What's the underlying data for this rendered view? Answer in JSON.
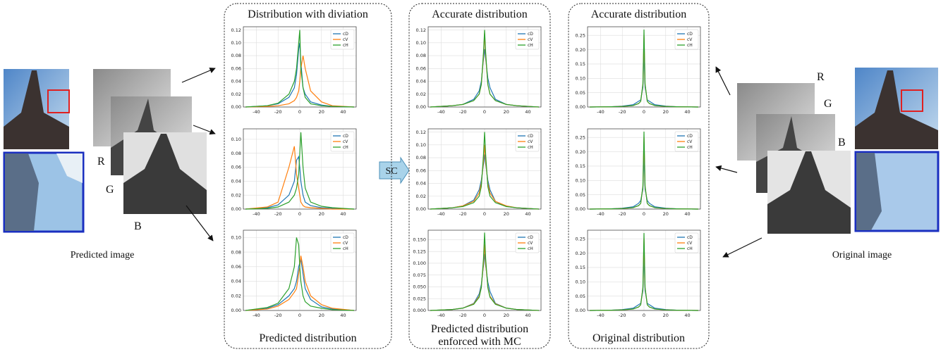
{
  "left": {
    "channels": [
      "R",
      "G",
      "B"
    ],
    "caption": "Predicted image"
  },
  "right": {
    "channels": [
      "R",
      "G",
      "B"
    ],
    "caption": "Original image"
  },
  "sc_label": "SC",
  "panels": [
    {
      "title": "Distribution with diviation",
      "caption": [
        "Predicted distribution"
      ]
    },
    {
      "title": "Accurate distribution",
      "caption": [
        "Predicted distribution",
        "enforced with MC"
      ]
    },
    {
      "title": "Accurate distribution",
      "caption": [
        "Original distribution"
      ]
    }
  ],
  "chart_data": [
    {
      "type": "line",
      "x": [
        -50,
        -30,
        -20,
        -10,
        -5,
        -3,
        -1,
        0,
        1,
        3,
        5,
        10,
        20,
        30,
        50
      ],
      "xlim": [
        -52,
        52
      ],
      "xticks": [
        -40,
        -20,
        0,
        20,
        40
      ],
      "ylim": [
        0,
        0.125
      ],
      "yticks": [
        {
          "value": 0,
          "label": "0.00"
        },
        {
          "value": 0.02,
          "label": "0.02"
        },
        {
          "value": 0.04,
          "label": "0.04"
        },
        {
          "value": 0.06,
          "label": "0.06"
        },
        {
          "value": 0.08,
          "label": "0.08"
        },
        {
          "value": 0.1,
          "label": "0.10"
        },
        {
          "value": 0.12,
          "label": "0.12"
        }
      ],
      "grid": true,
      "legend": "upper right",
      "series": [
        {
          "name": "cD",
          "color": "#1f77b4",
          "values": [
            0,
            0.002,
            0.005,
            0.015,
            0.03,
            0.05,
            0.09,
            0.1,
            0.07,
            0.03,
            0.02,
            0.008,
            0.003,
            0.001,
            0
          ]
        },
        {
          "name": "cV",
          "color": "#ff7f0e",
          "values": [
            0,
            0.001,
            0.002,
            0.005,
            0.01,
            0.015,
            0.025,
            0.04,
            0.06,
            0.08,
            0.06,
            0.025,
            0.008,
            0.002,
            0
          ]
        },
        {
          "name": "cH",
          "color": "#2ca02c",
          "values": [
            0,
            0.002,
            0.006,
            0.02,
            0.04,
            0.06,
            0.1,
            0.12,
            0.06,
            0.03,
            0.015,
            0.005,
            0.002,
            0.001,
            0
          ]
        }
      ]
    },
    {
      "type": "line",
      "x": [
        -50,
        -30,
        -20,
        -10,
        -5,
        -3,
        -1,
        0,
        1,
        3,
        5,
        10,
        20,
        30,
        50
      ],
      "xlim": [
        -52,
        52
      ],
      "xticks": [
        -40,
        -20,
        0,
        20,
        40
      ],
      "ylim": [
        0,
        0.115
      ],
      "yticks": [
        {
          "value": 0,
          "label": "0.00"
        },
        {
          "value": 0.02,
          "label": "0.02"
        },
        {
          "value": 0.04,
          "label": "0.04"
        },
        {
          "value": 0.06,
          "label": "0.06"
        },
        {
          "value": 0.08,
          "label": "0.08"
        },
        {
          "value": 0.1,
          "label": "0.10"
        }
      ],
      "grid": true,
      "legend": "upper right",
      "series": [
        {
          "name": "cD",
          "color": "#1f77b4",
          "values": [
            0,
            0.002,
            0.006,
            0.02,
            0.04,
            0.07,
            0.075,
            0.06,
            0.04,
            0.02,
            0.01,
            0.005,
            0.002,
            0.001,
            0
          ]
        },
        {
          "name": "cV",
          "color": "#ff7f0e",
          "values": [
            0,
            0.003,
            0.01,
            0.06,
            0.09,
            0.05,
            0.03,
            0.02,
            0.01,
            0.005,
            0.003,
            0.002,
            0.001,
            0,
            0
          ]
        },
        {
          "name": "cH",
          "color": "#2ca02c",
          "values": [
            0,
            0.001,
            0.003,
            0.01,
            0.02,
            0.03,
            0.05,
            0.08,
            0.11,
            0.06,
            0.03,
            0.01,
            0.004,
            0.002,
            0
          ]
        }
      ]
    },
    {
      "type": "line",
      "x": [
        -50,
        -30,
        -20,
        -10,
        -5,
        -3,
        -1,
        0,
        1,
        3,
        5,
        10,
        20,
        30,
        50
      ],
      "xlim": [
        -52,
        52
      ],
      "xticks": [
        -40,
        -20,
        0,
        20,
        40
      ],
      "ylim": [
        0,
        0.11
      ],
      "yticks": [
        {
          "value": 0,
          "label": "0.00"
        },
        {
          "value": 0.02,
          "label": "0.02"
        },
        {
          "value": 0.04,
          "label": "0.04"
        },
        {
          "value": 0.06,
          "label": "0.06"
        },
        {
          "value": 0.08,
          "label": "0.08"
        },
        {
          "value": 0.1,
          "label": "0.10"
        }
      ],
      "grid": true,
      "legend": "upper right",
      "series": [
        {
          "name": "cD",
          "color": "#1f77b4",
          "values": [
            0,
            0.003,
            0.008,
            0.02,
            0.03,
            0.04,
            0.06,
            0.065,
            0.07,
            0.05,
            0.03,
            0.015,
            0.005,
            0.002,
            0
          ]
        },
        {
          "name": "cV",
          "color": "#ff7f0e",
          "values": [
            0,
            0.002,
            0.006,
            0.015,
            0.025,
            0.03,
            0.05,
            0.06,
            0.075,
            0.06,
            0.04,
            0.02,
            0.008,
            0.003,
            0
          ]
        },
        {
          "name": "cH",
          "color": "#2ca02c",
          "values": [
            0,
            0.004,
            0.01,
            0.03,
            0.06,
            0.1,
            0.09,
            0.06,
            0.04,
            0.02,
            0.012,
            0.006,
            0.003,
            0.001,
            0
          ]
        }
      ]
    },
    {
      "type": "line",
      "x": [
        -50,
        -30,
        -20,
        -10,
        -5,
        -3,
        -1,
        0,
        1,
        3,
        5,
        10,
        20,
        30,
        50
      ],
      "xlim": [
        -52,
        52
      ],
      "xticks": [
        -40,
        -20,
        0,
        20,
        40
      ],
      "ylim": [
        0,
        0.125
      ],
      "yticks": [
        {
          "value": 0,
          "label": "0.00"
        },
        {
          "value": 0.02,
          "label": "0.02"
        },
        {
          "value": 0.04,
          "label": "0.04"
        },
        {
          "value": 0.06,
          "label": "0.06"
        },
        {
          "value": 0.08,
          "label": "0.08"
        },
        {
          "value": 0.1,
          "label": "0.10"
        },
        {
          "value": 0.12,
          "label": "0.12"
        }
      ],
      "grid": true,
      "legend": "upper right",
      "series": [
        {
          "name": "cD",
          "color": "#1f77b4",
          "values": [
            0,
            0.002,
            0.004,
            0.012,
            0.025,
            0.04,
            0.075,
            0.09,
            0.075,
            0.045,
            0.03,
            0.012,
            0.004,
            0.002,
            0
          ]
        },
        {
          "name": "cV",
          "color": "#ff7f0e",
          "values": [
            0,
            0.002,
            0.004,
            0.01,
            0.02,
            0.035,
            0.08,
            0.115,
            0.08,
            0.035,
            0.02,
            0.01,
            0.004,
            0.002,
            0
          ]
        },
        {
          "name": "cH",
          "color": "#2ca02c",
          "values": [
            0,
            0.002,
            0.004,
            0.01,
            0.02,
            0.035,
            0.085,
            0.12,
            0.085,
            0.035,
            0.02,
            0.01,
            0.004,
            0.002,
            0
          ]
        }
      ]
    },
    {
      "type": "line",
      "x": [
        -50,
        -30,
        -20,
        -10,
        -5,
        -3,
        -1,
        0,
        1,
        3,
        5,
        10,
        20,
        30,
        50
      ],
      "xlim": [
        -52,
        52
      ],
      "xticks": [
        -40,
        -20,
        0,
        20,
        40
      ],
      "ylim": [
        0,
        0.125
      ],
      "yticks": [
        {
          "value": 0,
          "label": "0.00"
        },
        {
          "value": 0.02,
          "label": "0.02"
        },
        {
          "value": 0.04,
          "label": "0.04"
        },
        {
          "value": 0.06,
          "label": "0.06"
        },
        {
          "value": 0.08,
          "label": "0.08"
        },
        {
          "value": 0.1,
          "label": "0.10"
        },
        {
          "value": 0.12,
          "label": "0.12"
        }
      ],
      "grid": true,
      "legend": "upper right",
      "series": [
        {
          "name": "cD",
          "color": "#1f77b4",
          "values": [
            0,
            0.002,
            0.005,
            0.014,
            0.03,
            0.045,
            0.07,
            0.085,
            0.07,
            0.045,
            0.03,
            0.012,
            0.004,
            0.002,
            0
          ]
        },
        {
          "name": "cV",
          "color": "#ff7f0e",
          "values": [
            0,
            0.002,
            0.005,
            0.012,
            0.025,
            0.04,
            0.075,
            0.1,
            0.075,
            0.04,
            0.025,
            0.012,
            0.005,
            0.002,
            0
          ]
        },
        {
          "name": "cH",
          "color": "#2ca02c",
          "values": [
            0,
            0.002,
            0.004,
            0.01,
            0.02,
            0.035,
            0.085,
            0.12,
            0.085,
            0.035,
            0.02,
            0.01,
            0.004,
            0.002,
            0
          ]
        }
      ]
    },
    {
      "type": "line",
      "x": [
        -50,
        -30,
        -20,
        -10,
        -5,
        -3,
        -1,
        0,
        1,
        3,
        5,
        10,
        20,
        30,
        50
      ],
      "xlim": [
        -52,
        52
      ],
      "xticks": [
        -40,
        -20,
        0,
        20,
        40
      ],
      "ylim": [
        0,
        0.17
      ],
      "yticks": [
        {
          "value": 0,
          "label": "0.000"
        },
        {
          "value": 0.025,
          "label": "0.025"
        },
        {
          "value": 0.05,
          "label": "0.050"
        },
        {
          "value": 0.075,
          "label": "0.075"
        },
        {
          "value": 0.1,
          "label": "0.100"
        },
        {
          "value": 0.125,
          "label": "0.125"
        },
        {
          "value": 0.15,
          "label": "0.150"
        }
      ],
      "grid": true,
      "legend": "upper right",
      "series": [
        {
          "name": "cD",
          "color": "#1f77b4",
          "values": [
            0,
            0.002,
            0.005,
            0.015,
            0.035,
            0.055,
            0.095,
            0.12,
            0.095,
            0.06,
            0.04,
            0.015,
            0.005,
            0.002,
            0
          ]
        },
        {
          "name": "cV",
          "color": "#ff7f0e",
          "values": [
            0,
            0.002,
            0.005,
            0.014,
            0.03,
            0.05,
            0.1,
            0.14,
            0.1,
            0.05,
            0.03,
            0.014,
            0.005,
            0.002,
            0
          ]
        },
        {
          "name": "cH",
          "color": "#2ca02c",
          "values": [
            0,
            0.002,
            0.005,
            0.013,
            0.028,
            0.048,
            0.11,
            0.165,
            0.11,
            0.048,
            0.028,
            0.013,
            0.005,
            0.002,
            0
          ]
        }
      ]
    },
    {
      "type": "line",
      "x": [
        -50,
        -30,
        -20,
        -10,
        -5,
        -3,
        -1,
        0,
        1,
        3,
        5,
        10,
        20,
        30,
        50
      ],
      "xlim": [
        -52,
        52
      ],
      "xticks": [
        -40,
        -20,
        0,
        20,
        40
      ],
      "ylim": [
        0,
        0.28
      ],
      "yticks": [
        {
          "value": 0,
          "label": "0.00"
        },
        {
          "value": 0.05,
          "label": "0.05"
        },
        {
          "value": 0.1,
          "label": "0.10"
        },
        {
          "value": 0.15,
          "label": "0.15"
        },
        {
          "value": 0.2,
          "label": "0.20"
        },
        {
          "value": 0.25,
          "label": "0.25"
        }
      ],
      "grid": true,
      "legend": "upper right",
      "series": [
        {
          "name": "cD",
          "color": "#1f77b4",
          "values": [
            0,
            0.001,
            0.003,
            0.008,
            0.02,
            0.025,
            0.07,
            0.2,
            0.07,
            0.025,
            0.02,
            0.008,
            0.003,
            0.001,
            0
          ]
        },
        {
          "name": "cV",
          "color": "#ff7f0e",
          "values": [
            0,
            0.001,
            0.002,
            0.005,
            0.012,
            0.02,
            0.08,
            0.25,
            0.08,
            0.02,
            0.012,
            0.005,
            0.002,
            0.001,
            0
          ]
        },
        {
          "name": "cH",
          "color": "#2ca02c",
          "values": [
            0,
            0.001,
            0.002,
            0.005,
            0.012,
            0.02,
            0.08,
            0.27,
            0.08,
            0.02,
            0.012,
            0.005,
            0.002,
            0.001,
            0
          ]
        }
      ]
    },
    {
      "type": "line",
      "x": [
        -50,
        -30,
        -20,
        -10,
        -5,
        -3,
        -1,
        0,
        1,
        3,
        5,
        10,
        20,
        30,
        50
      ],
      "xlim": [
        -52,
        52
      ],
      "xticks": [
        -40,
        -20,
        0,
        20,
        40
      ],
      "ylim": [
        0,
        0.28
      ],
      "yticks": [
        {
          "value": 0,
          "label": "0.00"
        },
        {
          "value": 0.05,
          "label": "0.05"
        },
        {
          "value": 0.1,
          "label": "0.10"
        },
        {
          "value": 0.15,
          "label": "0.15"
        },
        {
          "value": 0.2,
          "label": "0.20"
        },
        {
          "value": 0.25,
          "label": "0.25"
        }
      ],
      "grid": true,
      "legend": "upper right",
      "series": [
        {
          "name": "cD",
          "color": "#1f77b4",
          "values": [
            0,
            0.001,
            0.003,
            0.008,
            0.02,
            0.03,
            0.07,
            0.2,
            0.07,
            0.03,
            0.02,
            0.008,
            0.003,
            0.001,
            0
          ]
        },
        {
          "name": "cV",
          "color": "#ff7f0e",
          "values": [
            0,
            0.001,
            0.002,
            0.005,
            0.012,
            0.02,
            0.08,
            0.25,
            0.08,
            0.02,
            0.012,
            0.005,
            0.002,
            0.001,
            0
          ]
        },
        {
          "name": "cH",
          "color": "#2ca02c",
          "values": [
            0,
            0.001,
            0.002,
            0.005,
            0.012,
            0.02,
            0.08,
            0.27,
            0.08,
            0.02,
            0.012,
            0.005,
            0.002,
            0.001,
            0
          ]
        }
      ]
    },
    {
      "type": "line",
      "x": [
        -50,
        -30,
        -20,
        -10,
        -5,
        -3,
        -1,
        0,
        1,
        3,
        5,
        10,
        20,
        30,
        50
      ],
      "xlim": [
        -52,
        52
      ],
      "xticks": [
        -40,
        -20,
        0,
        20,
        40
      ],
      "ylim": [
        0,
        0.28
      ],
      "yticks": [
        {
          "value": 0,
          "label": "0.00"
        },
        {
          "value": 0.05,
          "label": "0.05"
        },
        {
          "value": 0.1,
          "label": "0.10"
        },
        {
          "value": 0.15,
          "label": "0.15"
        },
        {
          "value": 0.2,
          "label": "0.20"
        },
        {
          "value": 0.25,
          "label": "0.25"
        }
      ],
      "grid": true,
      "legend": "upper right",
      "series": [
        {
          "name": "cD",
          "color": "#1f77b4",
          "values": [
            0,
            0.001,
            0.003,
            0.008,
            0.02,
            0.025,
            0.07,
            0.2,
            0.07,
            0.025,
            0.02,
            0.008,
            0.003,
            0.001,
            0
          ]
        },
        {
          "name": "cV",
          "color": "#ff7f0e",
          "values": [
            0,
            0.001,
            0.002,
            0.005,
            0.012,
            0.02,
            0.08,
            0.25,
            0.08,
            0.02,
            0.012,
            0.005,
            0.002,
            0.001,
            0
          ]
        },
        {
          "name": "cH",
          "color": "#2ca02c",
          "values": [
            0,
            0.001,
            0.002,
            0.005,
            0.012,
            0.02,
            0.08,
            0.27,
            0.08,
            0.02,
            0.012,
            0.005,
            0.002,
            0.001,
            0
          ]
        }
      ]
    }
  ]
}
